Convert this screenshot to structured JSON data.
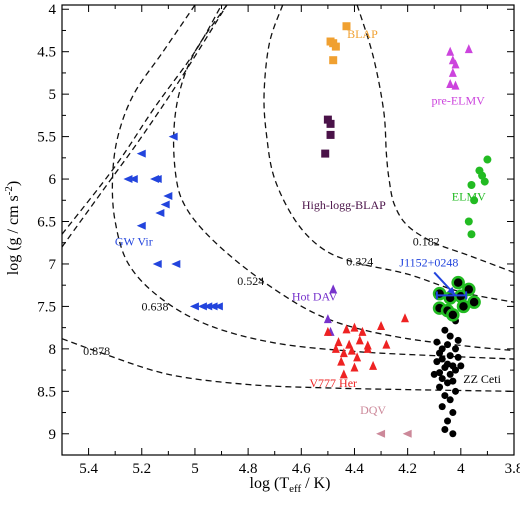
{
  "chart_data": {
    "type": "scatter",
    "title": "",
    "xlabel_main": "log (T",
    "xlabel_sub": "eff",
    "xlabel_end": " / K)",
    "ylabel_main": "log (g / cm s",
    "ylabel_sup": "-2",
    "ylabel_end": ")",
    "xlim": [
      5.5,
      3.8
    ],
    "ylim": [
      9.25,
      3.95
    ],
    "x_reversed": true,
    "y_reversed": true,
    "x_ticks": [
      5.4,
      5.2,
      5.0,
      4.8,
      4.6,
      4.4,
      4.2,
      4.0,
      3.8
    ],
    "x_tick_labels": [
      "5.4",
      "5.2",
      "5",
      "4.8",
      "4.6",
      "4.4",
      "4.2",
      "4",
      "3.8"
    ],
    "y_ticks": [
      4,
      4.5,
      5,
      5.5,
      6,
      6.5,
      7,
      7.5,
      8,
      8.5,
      9
    ],
    "y_tick_labels": [
      "4",
      "4.5",
      "5",
      "5.5",
      "6",
      "6.5",
      "7",
      "7.5",
      "8",
      "8.5",
      "9"
    ],
    "tracks": [
      {
        "label": "0.182",
        "label_at": [
          4.13,
          6.78
        ],
        "points": [
          [
            4.39,
            3.95
          ],
          [
            4.33,
            4.55
          ],
          [
            4.29,
            5.2
          ],
          [
            4.28,
            5.7
          ],
          [
            4.27,
            6.0
          ],
          [
            4.25,
            6.3
          ],
          [
            4.2,
            6.55
          ],
          [
            4.1,
            6.75
          ],
          [
            3.97,
            6.9
          ],
          [
            3.8,
            7.1
          ]
        ]
      },
      {
        "label": "0.324",
        "label_at": [
          4.38,
          7.02
        ],
        "points": [
          [
            4.67,
            3.95
          ],
          [
            4.72,
            4.4
          ],
          [
            4.74,
            5.0
          ],
          [
            4.73,
            5.5
          ],
          [
            4.7,
            6.0
          ],
          [
            4.62,
            6.5
          ],
          [
            4.52,
            6.82
          ],
          [
            4.4,
            6.98
          ],
          [
            4.2,
            7.12
          ],
          [
            4.0,
            7.33
          ],
          [
            3.8,
            7.45
          ]
        ]
      },
      {
        "label": "0.524",
        "label_at": [
          4.79,
          7.25
        ],
        "points": [
          [
            4.88,
            3.95
          ],
          [
            5.0,
            4.5
          ],
          [
            5.06,
            5.0
          ],
          [
            5.08,
            5.5
          ],
          [
            5.07,
            6.0
          ],
          [
            5.04,
            6.3
          ],
          [
            4.97,
            6.6
          ],
          [
            4.85,
            6.95
          ],
          [
            4.7,
            7.3
          ],
          [
            4.55,
            7.58
          ],
          [
            4.4,
            7.75
          ],
          [
            4.2,
            7.88
          ],
          [
            3.97,
            7.97
          ],
          [
            3.8,
            8.02
          ]
        ]
      },
      {
        "label": "0.638",
        "label_at": [
          5.15,
          7.55
        ],
        "points": [
          [
            5.0,
            3.95
          ],
          [
            5.12,
            4.5
          ],
          [
            5.23,
            5.0
          ],
          [
            5.29,
            5.5
          ],
          [
            5.31,
            6.0
          ],
          [
            5.3,
            6.5
          ],
          [
            5.25,
            7.0
          ],
          [
            5.13,
            7.4
          ],
          [
            4.95,
            7.72
          ],
          [
            4.7,
            7.93
          ],
          [
            4.4,
            8.03
          ],
          [
            4.1,
            8.08
          ],
          [
            3.8,
            8.12
          ]
        ]
      },
      {
        "label": "0.878",
        "label_at": [
          5.37,
          8.07
        ],
        "points": [
          [
            5.5,
            7.88
          ],
          [
            5.35,
            8.05
          ],
          [
            5.1,
            8.3
          ],
          [
            4.8,
            8.42
          ],
          [
            4.5,
            8.46
          ],
          [
            4.2,
            8.48
          ],
          [
            3.8,
            8.5
          ]
        ]
      },
      {
        "label": "",
        "label_at": null,
        "points": [
          [
            5.5,
            6.8
          ],
          [
            5.35,
            6.15
          ],
          [
            5.2,
            5.5
          ],
          [
            5.05,
            4.8
          ],
          [
            4.88,
            3.95
          ]
        ]
      },
      {
        "label": "",
        "label_at": null,
        "points": [
          [
            5.5,
            6.65
          ],
          [
            5.3,
            5.85
          ],
          [
            5.15,
            5.15
          ],
          [
            5.0,
            4.5
          ],
          [
            4.9,
            3.95
          ]
        ]
      }
    ],
    "series": [
      {
        "name": "BLAP",
        "color": "#f0a030",
        "marker": "square",
        "label_at": [
          4.37,
          4.34
        ],
        "points": [
          [
            4.43,
            4.2
          ],
          [
            4.49,
            4.38
          ],
          [
            4.48,
            4.4
          ],
          [
            4.47,
            4.44
          ],
          [
            4.48,
            4.6
          ]
        ]
      },
      {
        "name": "High-logg-BLAP",
        "color": "#4a1248",
        "marker": "square",
        "label_at": [
          4.44,
          6.35
        ],
        "points": [
          [
            4.5,
            5.3
          ],
          [
            4.49,
            5.35
          ],
          [
            4.49,
            5.48
          ],
          [
            4.51,
            5.7
          ]
        ]
      },
      {
        "name": "pre-ELMV",
        "color": "#cc44dd",
        "marker": "triangle-up",
        "label_at": [
          4.01,
          5.12
        ],
        "points": [
          [
            4.04,
            4.5
          ],
          [
            3.97,
            4.47
          ],
          [
            4.03,
            4.6
          ],
          [
            4.02,
            4.65
          ],
          [
            4.03,
            4.75
          ],
          [
            4.04,
            4.88
          ],
          [
            4.02,
            4.9
          ]
        ]
      },
      {
        "name": "ELMV",
        "color": "#22bb22",
        "marker": "circle",
        "label_at": [
          3.97,
          6.25
        ],
        "points": [
          [
            3.9,
            5.77
          ],
          [
            3.93,
            5.9
          ],
          [
            3.92,
            5.96
          ],
          [
            3.91,
            6.03
          ],
          [
            3.96,
            6.07
          ],
          [
            3.95,
            6.25
          ],
          [
            3.97,
            6.5
          ],
          [
            3.96,
            6.65
          ]
        ]
      },
      {
        "name": "GW Vir",
        "color": "#2244dd",
        "marker": "triangle-left",
        "label_at": [
          5.23,
          6.78
        ],
        "points": [
          [
            5.08,
            5.5
          ],
          [
            5.2,
            5.7
          ],
          [
            5.25,
            6.0
          ],
          [
            5.23,
            6.0
          ],
          [
            5.15,
            6.0
          ],
          [
            5.14,
            6.0
          ],
          [
            5.1,
            6.2
          ],
          [
            5.11,
            6.3
          ],
          [
            5.13,
            6.4
          ],
          [
            5.2,
            6.55
          ],
          [
            5.14,
            7.0
          ],
          [
            5.07,
            7.0
          ],
          [
            4.91,
            7.5
          ],
          [
            4.93,
            7.5
          ],
          [
            4.95,
            7.5
          ],
          [
            4.97,
            7.5
          ],
          [
            5.0,
            7.5
          ]
        ]
      },
      {
        "name": "Hot DAV",
        "color": "#7733cc",
        "marker": "triangle-up",
        "label_at": [
          4.55,
          7.43
        ],
        "points": [
          [
            4.48,
            7.3
          ],
          [
            4.5,
            7.65
          ],
          [
            4.49,
            7.8
          ]
        ]
      },
      {
        "name": "V777 Her",
        "color": "#ee2222",
        "marker": "triangle-up",
        "label_at": [
          4.48,
          8.45
        ],
        "points": [
          [
            4.5,
            7.8
          ],
          [
            4.43,
            7.77
          ],
          [
            4.4,
            7.75
          ],
          [
            4.37,
            7.8
          ],
          [
            4.3,
            7.73
          ],
          [
            4.46,
            7.92
          ],
          [
            4.42,
            7.95
          ],
          [
            4.38,
            7.9
          ],
          [
            4.35,
            7.96
          ],
          [
            4.47,
            8.0
          ],
          [
            4.44,
            8.05
          ],
          [
            4.41,
            8.02
          ],
          [
            4.39,
            8.1
          ],
          [
            4.45,
            8.15
          ],
          [
            4.35,
            8.0
          ],
          [
            4.28,
            7.95
          ],
          [
            4.21,
            7.64
          ],
          [
            4.33,
            8.2
          ],
          [
            4.4,
            8.22
          ],
          [
            4.44,
            8.3
          ]
        ]
      },
      {
        "name": "ZZ Ceti",
        "color": "#000000",
        "marker": "circle",
        "label_at": [
          3.92,
          8.4
        ],
        "points": [
          [
            4.07,
            7.55
          ],
          [
            4.03,
            7.6
          ],
          [
            4.02,
            7.67
          ],
          [
            4.06,
            7.78
          ],
          [
            4.04,
            7.85
          ],
          [
            4.05,
            7.95
          ],
          [
            4.07,
            8.0
          ],
          [
            4.02,
            8.0
          ],
          [
            4.08,
            8.05
          ],
          [
            4.04,
            8.08
          ],
          [
            4.01,
            8.1
          ],
          [
            4.07,
            8.12
          ],
          [
            4.09,
            8.15
          ],
          [
            4.05,
            8.18
          ],
          [
            4.03,
            8.2
          ],
          [
            4.06,
            8.22
          ],
          [
            4.02,
            8.25
          ],
          [
            4.08,
            8.28
          ],
          [
            4.04,
            8.3
          ],
          [
            4.07,
            8.35
          ],
          [
            4.03,
            8.38
          ],
          [
            4.05,
            8.4
          ],
          [
            4.08,
            8.45
          ],
          [
            4.02,
            8.5
          ],
          [
            4.06,
            8.55
          ],
          [
            4.04,
            8.6
          ],
          [
            4.07,
            8.68
          ],
          [
            4.03,
            8.75
          ],
          [
            4.05,
            8.85
          ],
          [
            4.06,
            8.95
          ],
          [
            4.03,
            9.0
          ],
          [
            4.01,
            7.9
          ],
          [
            4.09,
            7.92
          ],
          [
            4.1,
            8.3
          ],
          [
            4.0,
            8.2
          ]
        ]
      },
      {
        "name": "DQV",
        "color": "#cc8899",
        "marker": "triangle-left",
        "label_at": [
          4.33,
          8.77
        ],
        "points": [
          [
            4.3,
            9.0
          ],
          [
            4.2,
            9.0
          ]
        ]
      }
    ],
    "highlighted_points": {
      "fill": "#000000",
      "ring": "#22bb22",
      "points": [
        [
          4.08,
          7.35
        ],
        [
          4.04,
          7.4
        ],
        [
          4.0,
          7.38
        ],
        [
          3.97,
          7.3
        ],
        [
          4.01,
          7.22
        ],
        [
          4.08,
          7.52
        ],
        [
          4.05,
          7.55
        ],
        [
          4.03,
          7.6
        ],
        [
          3.99,
          7.5
        ],
        [
          3.95,
          7.45
        ]
      ]
    },
    "annotation": {
      "text": "J1152+0248",
      "color": "#2244dd",
      "text_at": [
        4.12,
        7.03
      ],
      "arrow_from": [
        4.1,
        7.1
      ],
      "arrow_to": [
        4.02,
        7.37
      ],
      "bar_from": [
        4.09,
        7.37
      ],
      "bar_to": [
        3.98,
        7.37
      ]
    }
  }
}
